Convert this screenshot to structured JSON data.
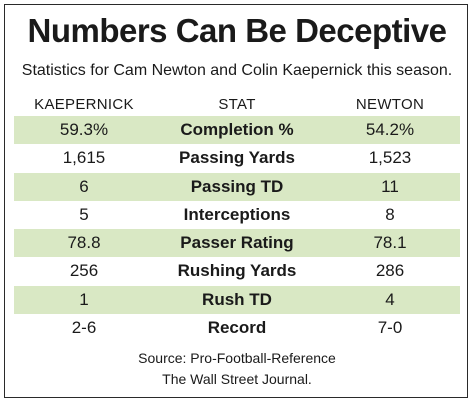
{
  "title": "Numbers Can Be Deceptive",
  "subtitle": "Statistics for Cam Newton and Colin Kaepernick this season.",
  "chart_data": {
    "type": "table",
    "columns": [
      "KAEPERNICK",
      "STAT",
      "NEWTON"
    ],
    "rows": [
      [
        "59.3%",
        "Completion %",
        "54.2%"
      ],
      [
        "1,615",
        "Passing Yards",
        "1,523"
      ],
      [
        "6",
        "Passing TD",
        "11"
      ],
      [
        "5",
        "Interceptions",
        "8"
      ],
      [
        "78.8",
        "Passer Rating",
        "78.1"
      ],
      [
        "256",
        "Rushing Yards",
        "286"
      ],
      [
        "1",
        "Rush TD",
        "4"
      ],
      [
        "2-6",
        "Record",
        "7-0"
      ]
    ],
    "shaded_row_color": "#d9e8c4"
  },
  "source_line1": "Source: Pro-Football-Reference",
  "source_line2": "The Wall Street Journal."
}
